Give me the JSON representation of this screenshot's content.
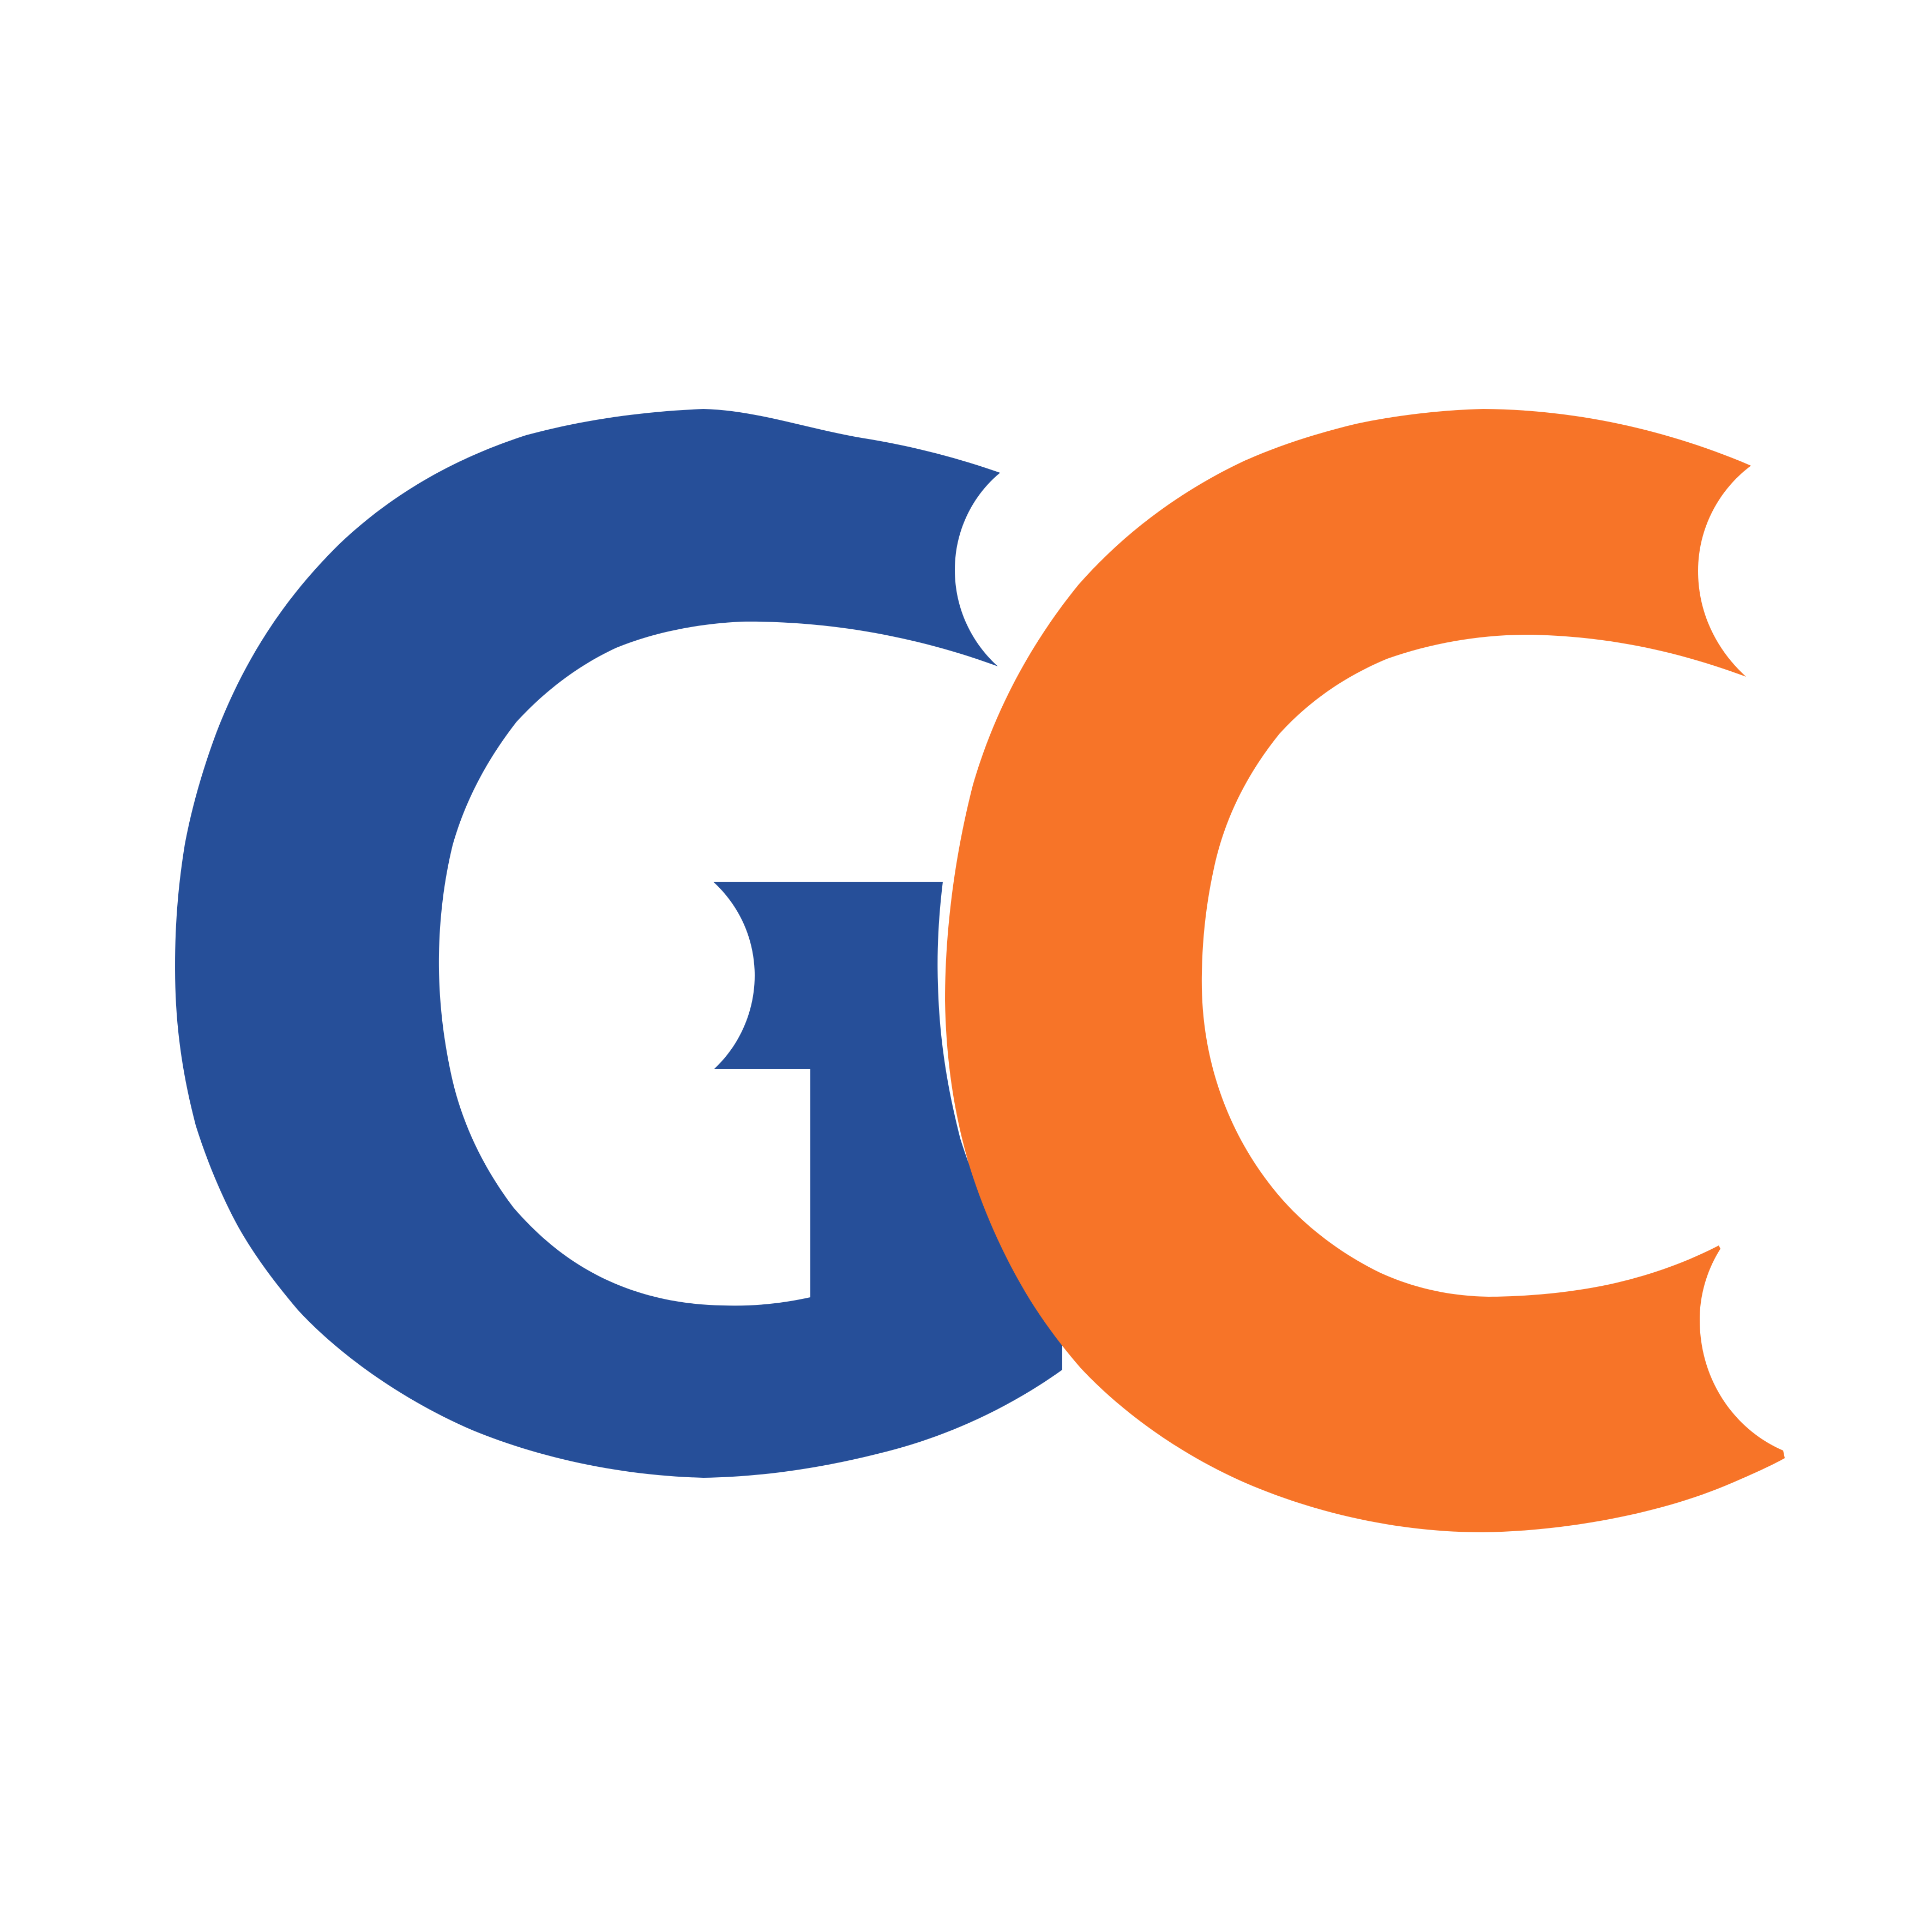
{
  "logo": {
    "letters": [
      "G",
      "C"
    ],
    "colors": {
      "g_letter": "#264f99",
      "c_letter": "#f77428",
      "background": "#ffffff"
    }
  }
}
